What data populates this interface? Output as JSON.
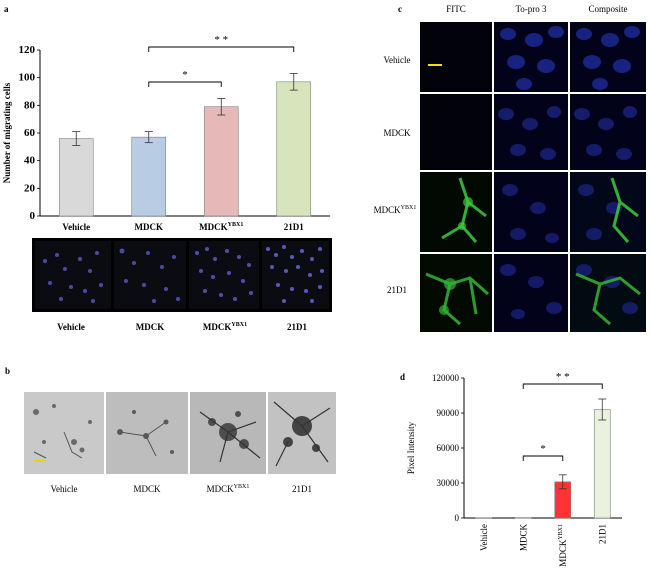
{
  "panels": {
    "a": "a",
    "b": "b",
    "c": "c",
    "d": "d"
  },
  "chart_data": [
    {
      "type": "bar",
      "panel": "a",
      "categories": [
        "Vehicle",
        "MDCK",
        "MDCK",
        "21D1"
      ],
      "category_superscripts": [
        "",
        "",
        "YBX1",
        ""
      ],
      "values": [
        56,
        57,
        79,
        97
      ],
      "errors": [
        5,
        4,
        6,
        6
      ],
      "colors": [
        "#d9d9d9",
        "#b8cce4",
        "#e6b9b8",
        "#d7e4bc"
      ],
      "ylabel": "Number of migrating cells",
      "ylim": [
        0,
        120
      ],
      "yticks": [
        "0",
        "20",
        "40",
        "60",
        "80",
        "100",
        "120"
      ],
      "significance": [
        {
          "from": 1,
          "to": 2,
          "label": "*"
        },
        {
          "from": 1,
          "to": 3,
          "label": "* *"
        }
      ]
    },
    {
      "type": "bar",
      "panel": "d",
      "categories": [
        "Vehicle",
        "MDCK",
        "MDCK",
        "21D1"
      ],
      "category_superscripts": [
        "",
        "",
        "YBX1",
        ""
      ],
      "values": [
        100,
        300,
        31000,
        93000
      ],
      "errors": [
        0,
        0,
        6000,
        9000
      ],
      "colors": [
        "#d9d9d9",
        "#b8cce4",
        "#ff3333",
        "#eaf1dd"
      ],
      "ylabel": "Pixel Intensity",
      "ylim": [
        0,
        120000
      ],
      "yticks": [
        "0",
        "30000",
        "60000",
        "90000",
        "120000"
      ],
      "significance": [
        {
          "from": 1,
          "to": 2,
          "label": "*"
        },
        {
          "from": 1,
          "to": 3,
          "label": "* *"
        }
      ]
    }
  ],
  "panel_a_images": {
    "labels": [
      "Vehicle",
      "MDCK",
      "MDCK",
      "21D1"
    ],
    "superscripts": [
      "",
      "",
      "YBX1",
      ""
    ]
  },
  "panel_b_images": {
    "labels": [
      "Vehicle",
      "MDCK",
      "MDCK",
      "21D1"
    ],
    "superscripts": [
      "",
      "",
      "YBX1",
      ""
    ]
  },
  "panel_c": {
    "columns": [
      "FITC",
      "To-pro 3",
      "Composite"
    ],
    "rows": [
      "Vehicle",
      "MDCK",
      "MDCK",
      "21D1"
    ],
    "row_superscripts": [
      "",
      "",
      "YBX1",
      ""
    ]
  }
}
